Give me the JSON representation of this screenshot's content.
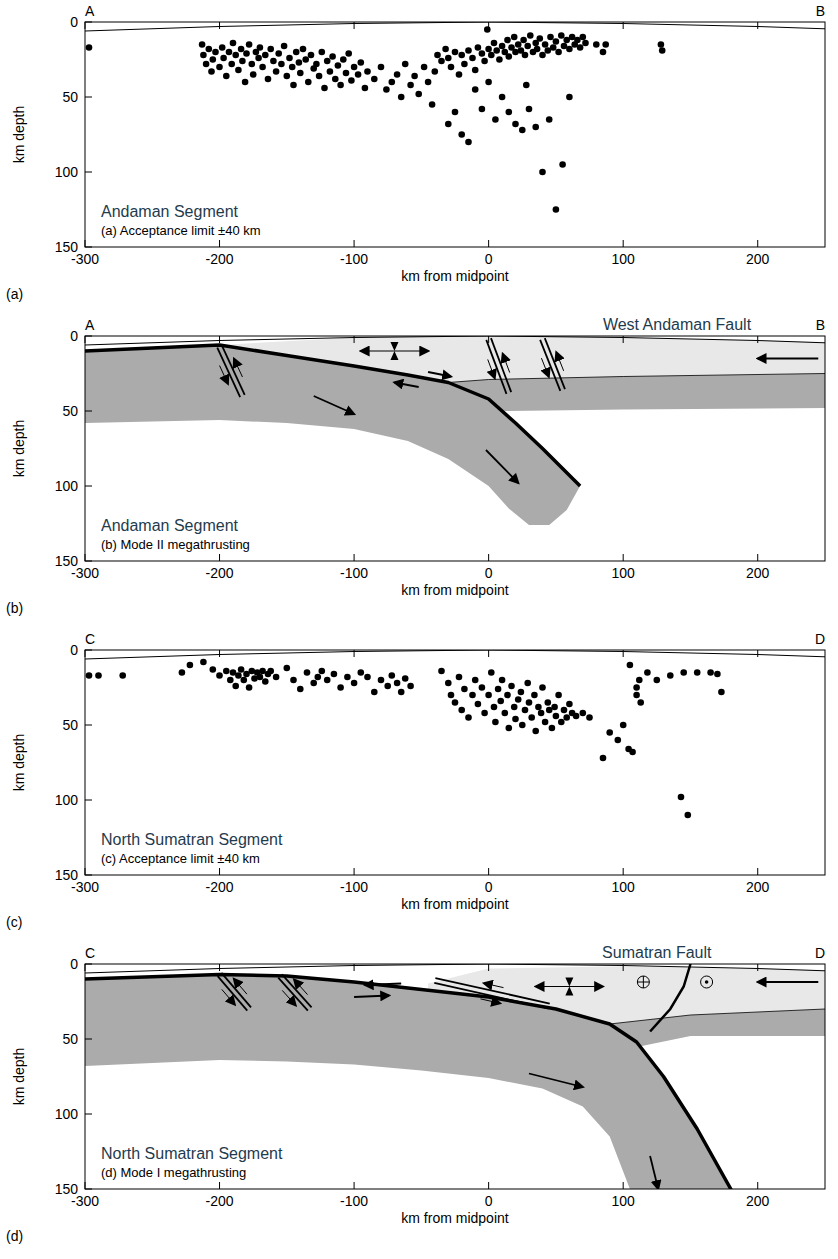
{
  "chart_data": [
    {
      "type": "scatter",
      "section_start": "A",
      "section_end": "B",
      "title": "Andaman Segment",
      "subtitle": "(a) Acceptance limit ±40 km",
      "panel_letter": "(a)",
      "xlabel": "km from midpoint",
      "ylabel": "km depth",
      "marker": "circle",
      "color": "#000000",
      "grid": false,
      "xlim": [
        -300,
        250
      ],
      "ylim": [
        150,
        0
      ],
      "xticks": [
        -300,
        -200,
        -100,
        0,
        100,
        200
      ],
      "yticks": [
        0,
        50,
        100,
        150
      ],
      "x": [
        -213,
        -212,
        -210,
        -208,
        -206,
        -205,
        -203,
        -200,
        -198,
        -197,
        -195,
        -193,
        -191,
        -190,
        -188,
        -186,
        -184,
        -183,
        -181,
        -180,
        -178,
        -176,
        -175,
        -173,
        -171,
        -170,
        -168,
        -166,
        -164,
        -162,
        -160,
        -158,
        -156,
        -154,
        -152,
        -150,
        -148,
        -146,
        -145,
        -143,
        -141,
        -140,
        -138,
        -136,
        -134,
        -132,
        -130,
        -128,
        -126,
        -124,
        -122,
        -120,
        -118,
        -116,
        -114,
        -112,
        -110,
        -108,
        -106,
        -104,
        -102,
        -100,
        -97,
        -95,
        -92,
        -90,
        -85,
        -80,
        -76,
        -72,
        -68,
        -65,
        -62,
        -58,
        -55,
        -52,
        -48,
        -45,
        -42,
        -40,
        -38,
        -35,
        -32,
        -30,
        -28,
        -25,
        -22,
        -20,
        -18,
        -15,
        -12,
        -10,
        -8,
        -5,
        -3,
        -1,
        0,
        2,
        4,
        6,
        8,
        10,
        12,
        14,
        15,
        17,
        19,
        20,
        22,
        24,
        26,
        27,
        29,
        31,
        33,
        35,
        36,
        38,
        40,
        42,
        44,
        46,
        48,
        50,
        52,
        54,
        56,
        58,
        60,
        62,
        64,
        66,
        68,
        70,
        72,
        -30,
        -25,
        -20,
        -15,
        -10,
        -5,
        0,
        5,
        10,
        15,
        20,
        25,
        28,
        30,
        35,
        40,
        45,
        50,
        55,
        60,
        -297,
        80,
        85,
        87,
        128,
        129
      ],
      "values": [
        15,
        22,
        28,
        18,
        33,
        25,
        20,
        30,
        17,
        24,
        36,
        20,
        28,
        14,
        22,
        32,
        18,
        26,
        40,
        21,
        15,
        28,
        35,
        20,
        24,
        17,
        30,
        22,
        38,
        18,
        26,
        33,
        21,
        28,
        16,
        36,
        24,
        30,
        42,
        20,
        27,
        34,
        18,
        25,
        40,
        22,
        31,
        28,
        36,
        20,
        44,
        26,
        33,
        23,
        38,
        29,
        42,
        25,
        34,
        21,
        39,
        30,
        35,
        27,
        44,
        33,
        38,
        30,
        45,
        40,
        35,
        50,
        28,
        42,
        36,
        48,
        30,
        40,
        55,
        33,
        22,
        26,
        18,
        24,
        30,
        20,
        35,
        22,
        28,
        19,
        24,
        32,
        17,
        21,
        26,
        5,
        18,
        22,
        14,
        19,
        25,
        16,
        20,
        12,
        23,
        17,
        10,
        20,
        15,
        19,
        12,
        22,
        16,
        9,
        20,
        14,
        18,
        11,
        22,
        15,
        19,
        10,
        17,
        13,
        20,
        9,
        16,
        12,
        18,
        10,
        15,
        12,
        17,
        10,
        14,
        68,
        60,
        75,
        80,
        45,
        58,
        40,
        65,
        50,
        60,
        68,
        72,
        42,
        58,
        70,
        100,
        65,
        125,
        95,
        50,
        17,
        15,
        20,
        15,
        15,
        19
      ]
    },
    {
      "type": "schematic",
      "section_start": "A",
      "section_end": "B",
      "title": "Andaman Segment",
      "subtitle": "(b) Mode II megathrusting",
      "panel_letter": "(b)",
      "annotations": [
        "West Andaman Fault"
      ],
      "xlabel": "km from midpoint",
      "ylabel": "km depth",
      "grid": false,
      "xlim": [
        -300,
        250
      ],
      "ylim": [
        150,
        0
      ],
      "xticks": [
        -300,
        -200,
        -100,
        0,
        100,
        200
      ],
      "yticks": [
        0,
        50,
        100,
        150
      ]
    },
    {
      "type": "scatter",
      "section_start": "C",
      "section_end": "D",
      "title": "North Sumatran Segment",
      "subtitle": "(c) Acceptance limit ±40 km",
      "panel_letter": "(c)",
      "xlabel": "km from midpoint",
      "ylabel": "km depth",
      "marker": "circle",
      "color": "#000000",
      "grid": false,
      "xlim": [
        -300,
        250
      ],
      "ylim": [
        150,
        0
      ],
      "xticks": [
        -300,
        -200,
        -100,
        0,
        100,
        200
      ],
      "yticks": [
        0,
        50,
        100,
        150
      ],
      "x": [
        -297,
        -290,
        -272,
        -228,
        -222,
        -212,
        -205,
        -200,
        -195,
        -192,
        -190,
        -188,
        -186,
        -184,
        -182,
        -180,
        -178,
        -176,
        -174,
        -172,
        -170,
        -168,
        -166,
        -164,
        -162,
        -158,
        -150,
        -145,
        -140,
        -135,
        -130,
        -127,
        -124,
        -120,
        -115,
        -110,
        -105,
        -100,
        -95,
        -90,
        -85,
        -80,
        -75,
        -72,
        -68,
        -65,
        -62,
        -58,
        -35,
        -30,
        -28,
        -25,
        -22,
        -20,
        -18,
        -15,
        -12,
        -10,
        -8,
        -5,
        -3,
        0,
        2,
        4,
        5,
        7,
        9,
        10,
        12,
        14,
        15,
        17,
        19,
        20,
        22,
        24,
        25,
        27,
        29,
        30,
        32,
        34,
        35,
        37,
        39,
        40,
        42,
        44,
        45,
        47,
        49,
        50,
        52,
        54,
        56,
        58,
        60,
        62,
        65,
        70,
        75,
        85,
        90,
        96,
        100,
        104,
        107,
        110,
        105,
        113,
        112,
        118,
        125,
        135,
        145,
        155,
        165,
        170,
        173,
        143,
        148,
        110
      ],
      "values": [
        17,
        17,
        17,
        15,
        10,
        8,
        13,
        17,
        14,
        20,
        15,
        24,
        17,
        13,
        20,
        16,
        25,
        14,
        19,
        15,
        18,
        14,
        21,
        16,
        14,
        18,
        12,
        20,
        26,
        15,
        22,
        18,
        14,
        20,
        16,
        25,
        18,
        22,
        15,
        18,
        28,
        20,
        24,
        17,
        22,
        28,
        19,
        24,
        14,
        22,
        30,
        35,
        18,
        40,
        26,
        45,
        30,
        20,
        36,
        25,
        42,
        30,
        15,
        38,
        48,
        26,
        34,
        20,
        42,
        30,
        52,
        24,
        38,
        46,
        33,
        28,
        50,
        40,
        22,
        35,
        45,
        30,
        54,
        38,
        42,
        25,
        48,
        35,
        40,
        52,
        38,
        44,
        30,
        48,
        40,
        45,
        36,
        42,
        44,
        42,
        45,
        72,
        55,
        60,
        50,
        66,
        68,
        25,
        10,
        35,
        20,
        15,
        20,
        17,
        15,
        15,
        15,
        16,
        28,
        98,
        110,
        30
      ]
    },
    {
      "type": "schematic",
      "section_start": "C",
      "section_end": "D",
      "title": "North Sumatran Segment",
      "subtitle": "(d) Mode I megathrusting",
      "panel_letter": "(d)",
      "annotations": [
        "Sumatran Fault"
      ],
      "xlabel": "km from midpoint",
      "ylabel": "km depth",
      "grid": false,
      "xlim": [
        -300,
        250
      ],
      "ylim": [
        150,
        0
      ],
      "xticks": [
        -300,
        -200,
        -100,
        0,
        100,
        200
      ],
      "yticks": [
        0,
        50,
        100,
        150
      ]
    }
  ]
}
